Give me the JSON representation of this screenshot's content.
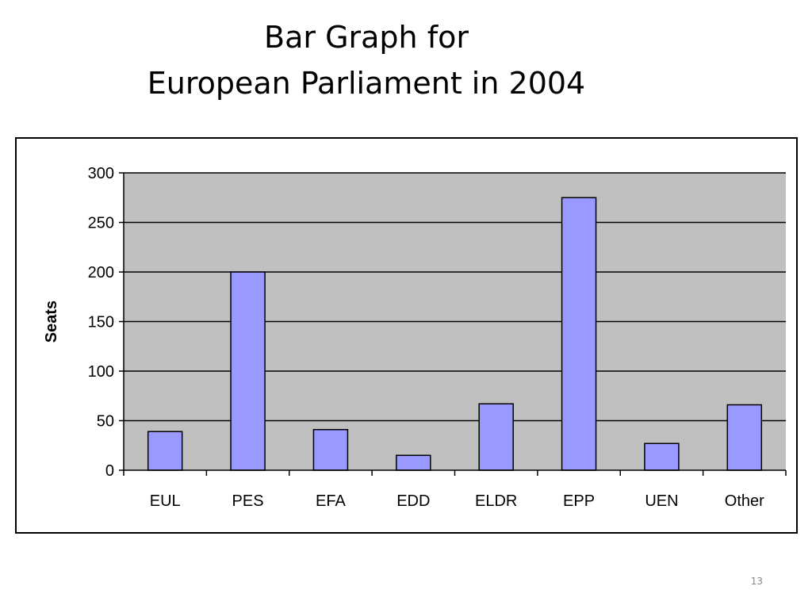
{
  "slide": {
    "title_line1": "Bar Graph for",
    "title_line2": "European Parliament in 2004",
    "page_number": "13"
  },
  "chart_data": {
    "type": "bar",
    "categories": [
      "EUL",
      "PES",
      "EFA",
      "EDD",
      "ELDR",
      "EPP",
      "UEN",
      "Other"
    ],
    "values": [
      39,
      200,
      41,
      15,
      67,
      275,
      27,
      66
    ],
    "title": "",
    "xlabel": "",
    "ylabel": "Seats",
    "ylim": [
      0,
      300
    ],
    "yticks": [
      0,
      50,
      100,
      150,
      200,
      250,
      300
    ],
    "grid": true,
    "legend": "none",
    "colors": {
      "bar_fill": "#9999ff",
      "bar_stroke": "#000000",
      "plot_background": "#c0c0c0",
      "gridline": "#000000"
    }
  }
}
